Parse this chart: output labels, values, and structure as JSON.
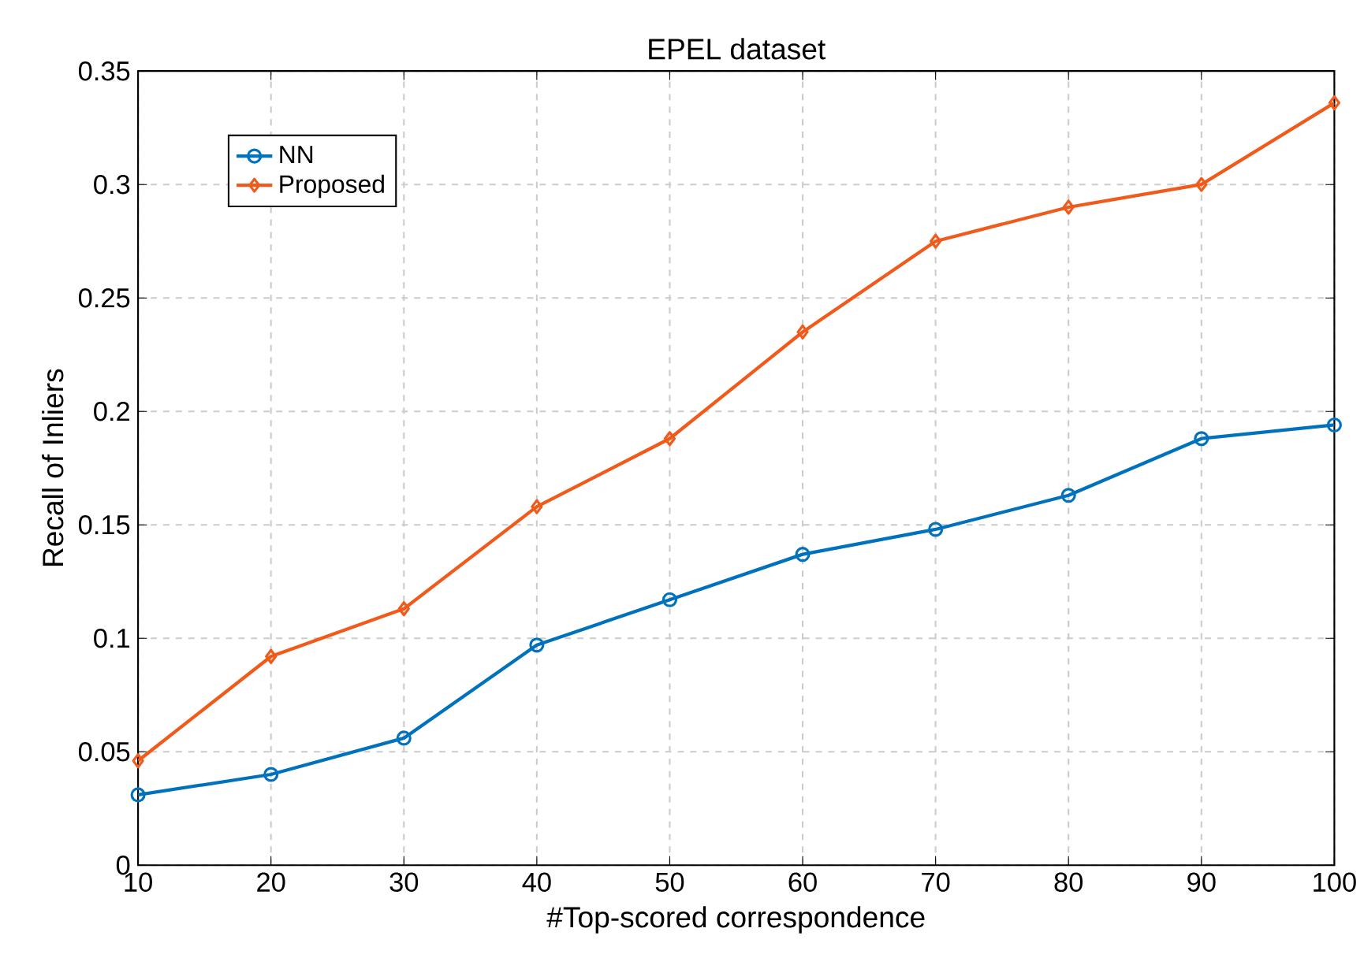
{
  "chart_data": {
    "type": "line",
    "title": "EPEL dataset",
    "xlabel": "#Top-scored correspondence",
    "ylabel": "Recall of Inliers",
    "x": [
      10,
      20,
      30,
      40,
      50,
      60,
      70,
      80,
      90,
      100
    ],
    "series": [
      {
        "name": "NN",
        "color": "#0072bd",
        "marker": "circle",
        "values": [
          0.031,
          0.04,
          0.056,
          0.097,
          0.117,
          0.137,
          0.148,
          0.163,
          0.188,
          0.194
        ]
      },
      {
        "name": "Proposed",
        "color": "#f05a1a",
        "marker": "diamond",
        "values": [
          0.046,
          0.092,
          0.113,
          0.158,
          0.188,
          0.235,
          0.275,
          0.29,
          0.3,
          0.336
        ]
      }
    ],
    "xlim": [
      10,
      100
    ],
    "ylim": [
      0,
      0.35
    ],
    "xticks": [
      10,
      20,
      30,
      40,
      50,
      60,
      70,
      80,
      90,
      100
    ],
    "yticks": [
      0,
      0.05,
      0.1,
      0.15,
      0.2,
      0.25,
      0.3,
      0.35
    ],
    "grid": true,
    "legend": "top left",
    "line_style": "solid"
  }
}
